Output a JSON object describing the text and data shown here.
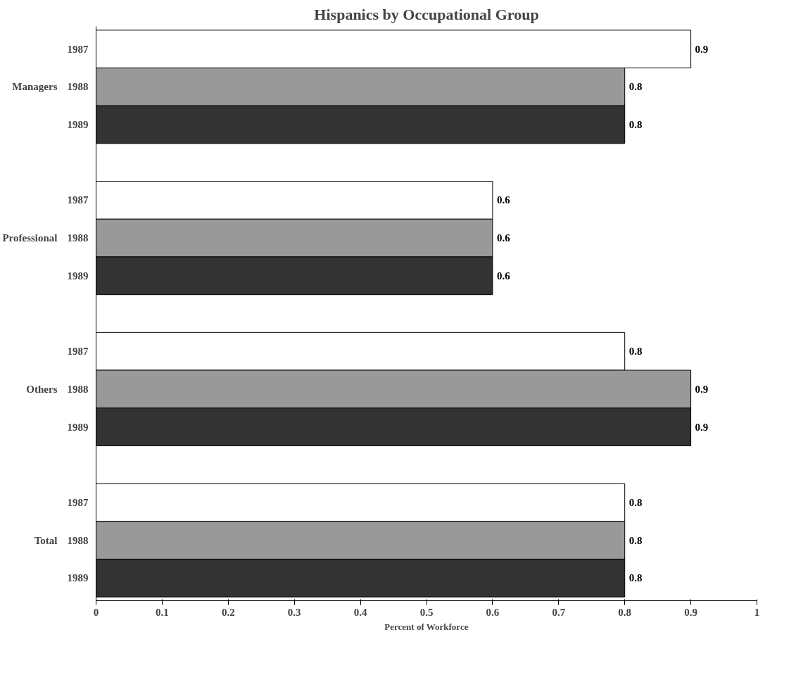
{
  "chart_data": {
    "type": "bar",
    "orientation": "horizontal",
    "title": "Hispanics by Occupational Group",
    "xlabel": "Percent of Workforce",
    "categories": [
      "Managers",
      "Professional",
      "Others",
      "Total"
    ],
    "series": [
      {
        "name": "1987",
        "color": "#ffffff",
        "values": [
          0.9,
          0.6,
          0.8,
          0.8
        ]
      },
      {
        "name": "1988",
        "color": "#999999",
        "values": [
          0.8,
          0.6,
          0.9,
          0.8
        ]
      },
      {
        "name": "1989",
        "color": "#333333",
        "values": [
          0.8,
          0.6,
          0.9,
          0.8
        ]
      }
    ],
    "xlim": [
      0,
      1
    ],
    "xticks": [
      0,
      0.1,
      0.2,
      0.3,
      0.4,
      0.5,
      0.6,
      0.7,
      0.8,
      0.9,
      1
    ],
    "data_labels": true,
    "grid": false
  }
}
